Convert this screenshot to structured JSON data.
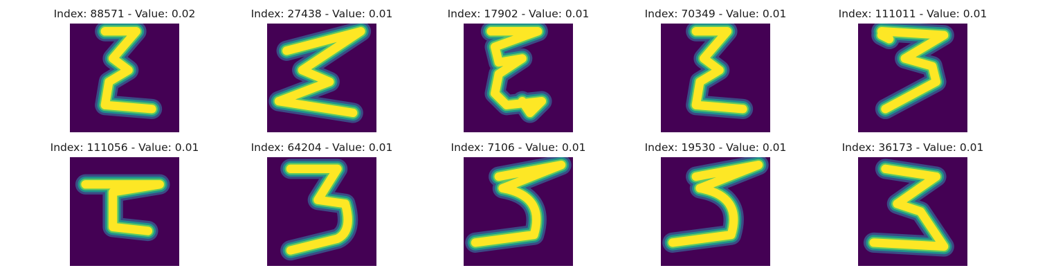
{
  "colors": {
    "background": "#440154",
    "mid_low": "#3b528b",
    "mid": "#21918c",
    "mid_high": "#5ec962",
    "stroke": "#fde725"
  },
  "panels": [
    {
      "title": "Index: 88571 - Value: 0.02",
      "glyph": "epsilon"
    },
    {
      "title": "Index: 27438 - Value: 0.01",
      "glyph": "sigma"
    },
    {
      "title": "Index: 17902 - Value: 0.01",
      "glyph": "epsilon-loop"
    },
    {
      "title": "Index: 70349 - Value: 0.01",
      "glyph": "epsilon"
    },
    {
      "title": "Index: 111011 - Value: 0.01",
      "glyph": "three"
    },
    {
      "title": "Index: 111056 - Value: 0.01",
      "glyph": "epsilon-block"
    },
    {
      "title": "Index: 64204 - Value: 0.01",
      "glyph": "three-round"
    },
    {
      "title": "Index: 7106 - Value: 0.01",
      "glyph": "five"
    },
    {
      "title": "Index: 19530 - Value: 0.01",
      "glyph": "five"
    },
    {
      "title": "Index: 36173 - Value: 0.01",
      "glyph": "three-sharp"
    }
  ]
}
